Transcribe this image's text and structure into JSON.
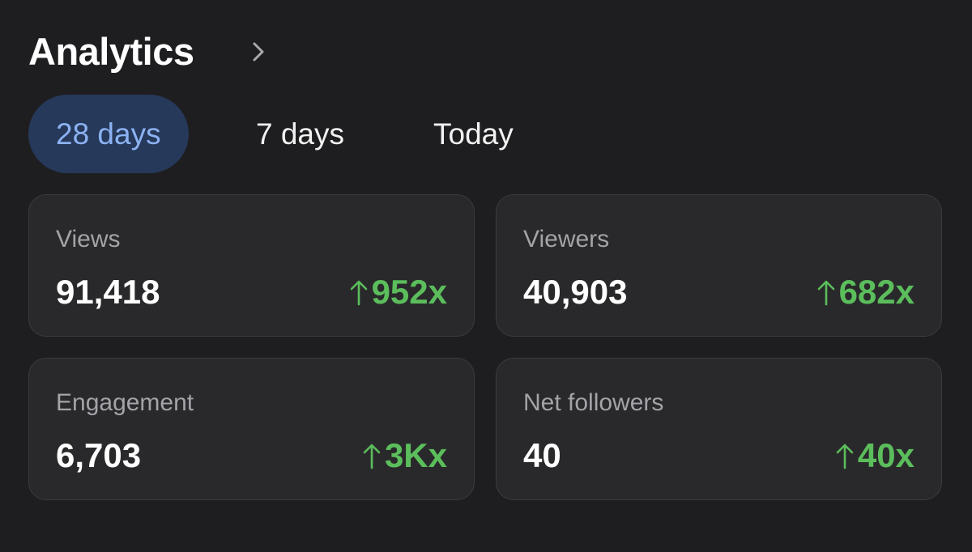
{
  "header": {
    "title": "Analytics"
  },
  "tabs": [
    {
      "label": "28 days",
      "selected": true
    },
    {
      "label": "7 days",
      "selected": false
    },
    {
      "label": "Today",
      "selected": false
    }
  ],
  "metrics": [
    {
      "label": "Views",
      "value": "91,418",
      "change": "952x"
    },
    {
      "label": "Viewers",
      "value": "40,903",
      "change": "682x"
    },
    {
      "label": "Engagement",
      "value": "6,703",
      "change": "3Kx"
    },
    {
      "label": "Net followers",
      "value": "40",
      "change": "40x"
    }
  ]
}
